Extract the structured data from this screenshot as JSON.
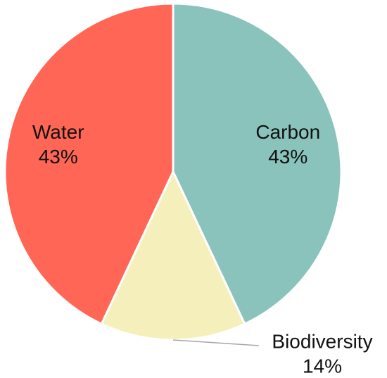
{
  "chart_data": {
    "type": "pie",
    "categories": [
      "Carbon",
      "Biodiversity",
      "Water"
    ],
    "values": [
      43,
      14,
      43
    ],
    "value_labels": [
      "43%",
      "14%",
      "43%"
    ],
    "colors": [
      "#8ac3bc",
      "#f5f0bb",
      "#ff6656"
    ]
  }
}
